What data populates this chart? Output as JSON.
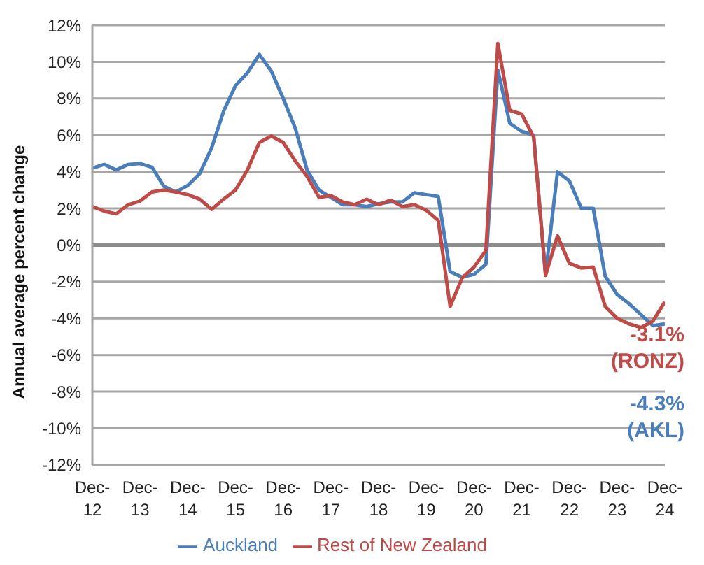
{
  "chart_data": {
    "type": "line",
    "ylabel": "Annual average percent change",
    "categories": [
      "Dec-12",
      null,
      null,
      null,
      "Dec-13",
      null,
      null,
      null,
      "Dec-14",
      null,
      null,
      null,
      "Dec-15",
      null,
      null,
      null,
      "Dec-16",
      null,
      null,
      null,
      "Dec-17",
      null,
      null,
      null,
      "Dec-18",
      null,
      null,
      null,
      "Dec-19",
      null,
      null,
      null,
      "Dec-20",
      null,
      null,
      null,
      "Dec-21",
      null,
      null,
      null,
      "Dec-22",
      null,
      null,
      null,
      "Dec-23",
      null,
      null,
      null,
      "Dec-24"
    ],
    "series": [
      {
        "name": "Auckland",
        "color": "#4a7ebb",
        "values": [
          4.2,
          4.4,
          4.1,
          4.4,
          4.45,
          4.25,
          3.2,
          2.9,
          3.25,
          3.9,
          5.3,
          7.3,
          8.7,
          9.4,
          10.4,
          9.5,
          8.0,
          6.4,
          4.1,
          3.0,
          2.6,
          2.2,
          2.2,
          2.1,
          2.25,
          2.35,
          2.35,
          2.85,
          2.75,
          2.65,
          -1.45,
          -1.75,
          -1.6,
          -1.05,
          9.55,
          6.65,
          6.2,
          6.0,
          -1.6,
          4.0,
          3.5,
          2.0,
          2.0,
          -1.7,
          -2.7,
          -3.2,
          -3.8,
          -4.4,
          -4.3
        ]
      },
      {
        "name": "Rest of New Zealand",
        "color": "#be4b48",
        "values": [
          2.1,
          1.85,
          1.7,
          2.2,
          2.4,
          2.9,
          3.0,
          2.9,
          2.75,
          2.5,
          1.95,
          2.5,
          3.0,
          4.1,
          5.6,
          5.95,
          5.6,
          4.6,
          3.75,
          2.6,
          2.7,
          2.35,
          2.2,
          2.5,
          2.2,
          2.45,
          2.1,
          2.2,
          1.9,
          1.35,
          -3.35,
          -1.8,
          -1.2,
          -0.3,
          11.0,
          7.35,
          7.15,
          5.9,
          -1.65,
          0.5,
          -1.0,
          -1.25,
          -1.2,
          -3.35,
          -4.0,
          -4.3,
          -4.5,
          -4.15,
          -3.1
        ]
      }
    ],
    "ylim": [
      -12,
      12
    ],
    "yticks": [
      {
        "value": -12,
        "label": "-12%"
      },
      {
        "value": -10,
        "label": "-10%"
      },
      {
        "value": -8,
        "label": "-8%"
      },
      {
        "value": -6,
        "label": "-6%"
      },
      {
        "value": -4,
        "label": "-4%"
      },
      {
        "value": -2,
        "label": "-2%"
      },
      {
        "value": 0,
        "label": "0%"
      },
      {
        "value": 2,
        "label": "2%"
      },
      {
        "value": 4,
        "label": "4%"
      },
      {
        "value": 6,
        "label": "6%"
      },
      {
        "value": 8,
        "label": "8%"
      },
      {
        "value": 10,
        "label": "10%"
      },
      {
        "value": 12,
        "label": "12%"
      }
    ],
    "annotations": [
      "-4.3% (AKL)",
      "-3.1% (RONZ)"
    ],
    "grid": "y",
    "legend": "bottom",
    "marker": "none",
    "line_style": "solid"
  }
}
